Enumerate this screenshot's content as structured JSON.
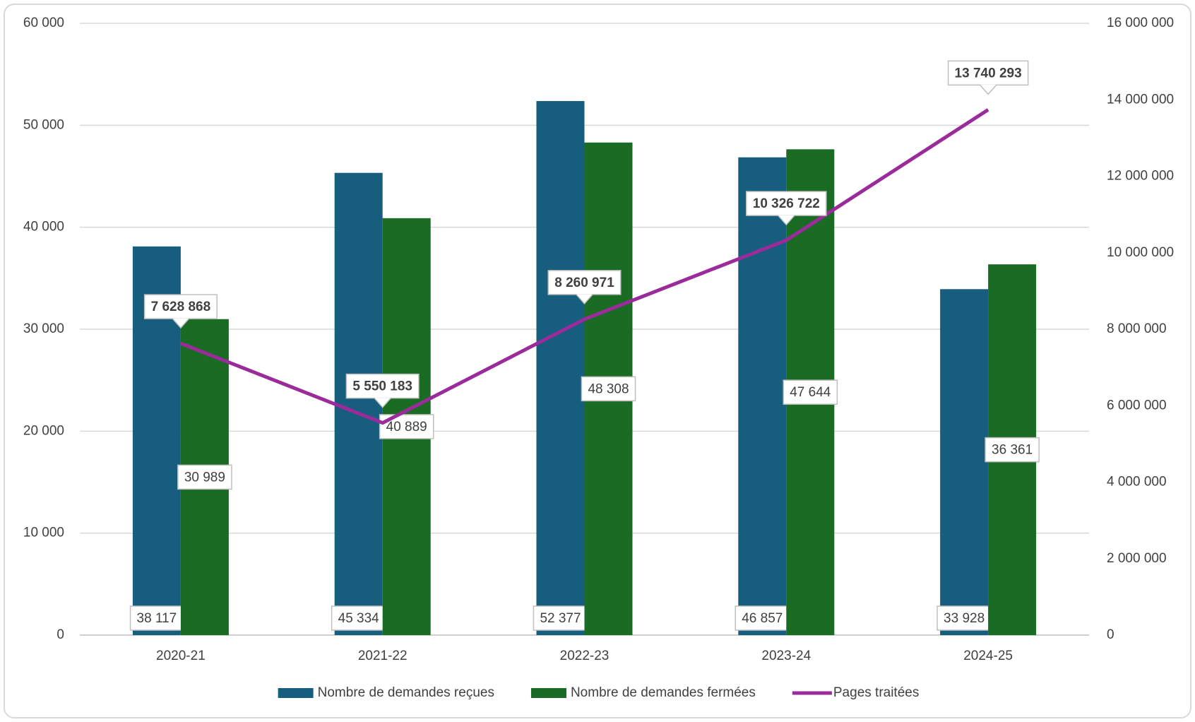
{
  "chart_data": {
    "type": "bar",
    "categories": [
      "2020-21",
      "2021-22",
      "2022-23",
      "2023-24",
      "2024-25"
    ],
    "series": [
      {
        "name": "Nombre de demandes reçues",
        "color": "#175e7e",
        "values": [
          38117,
          45334,
          52377,
          46857,
          33928
        ],
        "value_labels": [
          "38 117",
          "45 334",
          "52 377",
          "46 857",
          "33 928"
        ]
      },
      {
        "name": "Nombre de demandes fermées",
        "color": "#1a6b24",
        "values": [
          30989,
          40889,
          48308,
          47644,
          36361
        ],
        "value_labels": [
          "30 989",
          "40 889",
          "48 308",
          "47 644",
          "36 361"
        ]
      },
      {
        "name": "Pages traitées",
        "type": "line",
        "axis": "y2",
        "color": "#9b2b9b",
        "values": [
          7628868,
          5550183,
          8260971,
          10326722,
          13740293
        ],
        "value_labels": [
          "7 628 868",
          "5 550 183",
          "8 260 971",
          "10 326 722",
          "13 740 293"
        ]
      }
    ],
    "ylim": [
      0,
      60000
    ],
    "yticks": [
      0,
      {
        "value": 10000,
        "label": "10 000"
      },
      {
        "value": 20000,
        "label": "20 000"
      },
      {
        "value": 30000,
        "label": "30 000"
      },
      {
        "value": 40000,
        "label": "40 000"
      },
      {
        "value": 50000,
        "label": "50 000"
      },
      {
        "value": 60000,
        "label": "60 000"
      }
    ],
    "y2lim": [
      0,
      16000000
    ],
    "y2ticks": [
      0,
      {
        "value": 2000000,
        "label": "2 000 000"
      },
      {
        "value": 4000000,
        "label": "4 000 000"
      },
      {
        "value": 6000000,
        "label": "6 000 000"
      },
      {
        "value": 8000000,
        "label": "8 000 000"
      },
      {
        "value": 10000000,
        "label": "10 000 000"
      },
      {
        "value": 12000000,
        "label": "12 000 000"
      },
      {
        "value": 14000000,
        "label": "14 000 000"
      },
      {
        "value": 16000000,
        "label": "16 000 000"
      }
    ],
    "grid": true,
    "legend": "bottom"
  }
}
